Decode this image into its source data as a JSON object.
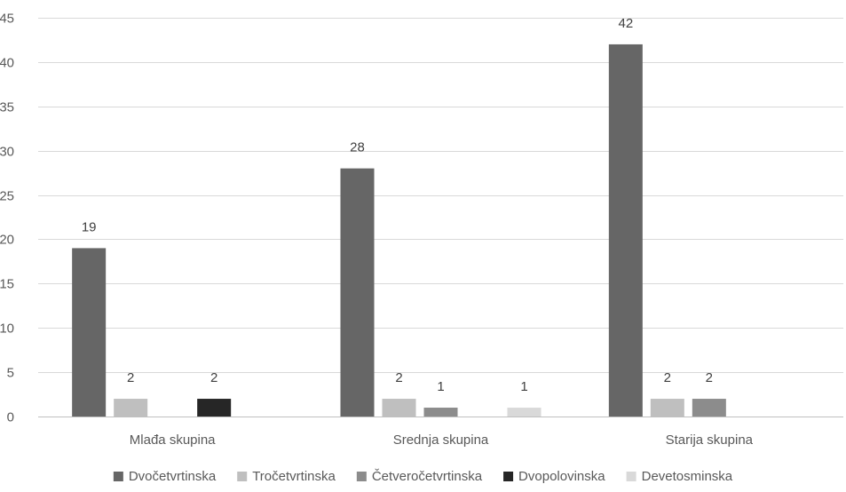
{
  "chart_data": {
    "type": "bar",
    "title": "",
    "xlabel": "",
    "ylabel": "",
    "categories": [
      "Mlađa skupina",
      "Srednja skupina",
      "Starija skupina"
    ],
    "series": [
      {
        "name": "Dvočetvrtinska",
        "color": "#666666",
        "values": [
          19,
          28,
          42
        ]
      },
      {
        "name": "Tročetvrtinska",
        "color": "#bfbfbf",
        "values": [
          2,
          2,
          2
        ]
      },
      {
        "name": "Četveročetvrtinska",
        "color": "#8c8c8c",
        "values": [
          null,
          1,
          2
        ]
      },
      {
        "name": "Dvopolovinska",
        "color": "#262626",
        "values": [
          2,
          null,
          null
        ]
      },
      {
        "name": "Devetosminska",
        "color": "#d9d9d9",
        "values": [
          null,
          1,
          null
        ]
      }
    ],
    "ylim": [
      0,
      45
    ],
    "yticks": [
      0,
      5,
      10,
      15,
      20,
      25,
      30,
      35,
      40,
      45
    ],
    "grid": true,
    "legend_position": "bottom"
  }
}
